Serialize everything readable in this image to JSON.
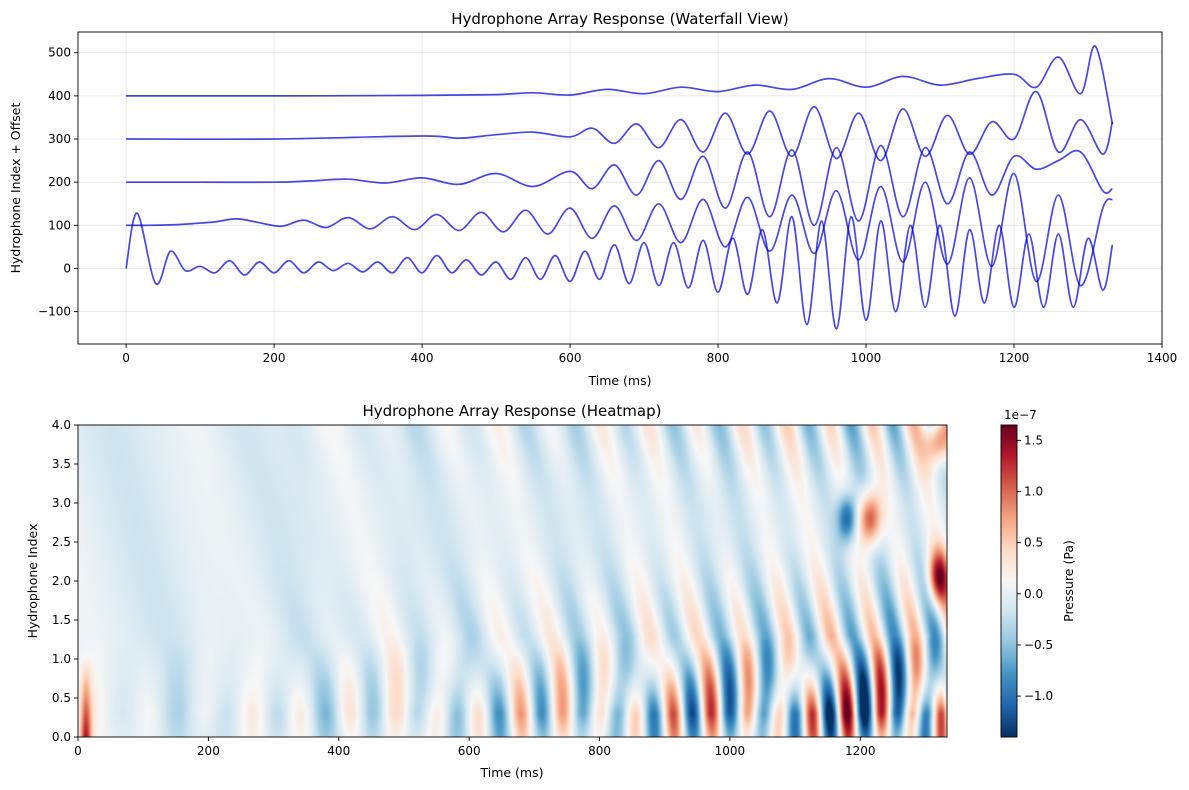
{
  "chart_data": [
    {
      "type": "line",
      "title": "Hydrophone Array Response (Waterfall View)",
      "xlabel": "Time (ms)",
      "ylabel": "Hydrophone Index + Offset",
      "xlim": [
        -65,
        1400
      ],
      "ylim": [
        -175,
        548
      ],
      "xticks": [
        0,
        200,
        400,
        600,
        800,
        1000,
        1200,
        1400
      ],
      "xtick_labels": [
        "0",
        "200",
        "400",
        "600",
        "800",
        "1000",
        "1200",
        "1400"
      ],
      "yticks": [
        -100,
        0,
        100,
        200,
        300,
        400,
        500
      ],
      "ytick_labels": [
        "−100",
        "0",
        "100",
        "200",
        "300",
        "400",
        "500"
      ],
      "grid": true,
      "line_color": "#0000dd",
      "series": [
        {
          "offset": 0,
          "x": [
            0,
            15,
            40,
            60,
            80,
            100,
            120,
            140,
            160,
            180,
            200,
            220,
            240,
            260,
            280,
            300,
            320,
            340,
            360,
            380,
            400,
            420,
            440,
            460,
            480,
            500,
            520,
            540,
            560,
            580,
            600,
            620,
            640,
            660,
            680,
            700,
            720,
            740,
            760,
            780,
            800,
            820,
            840,
            860,
            880,
            900,
            920,
            940,
            960,
            980,
            1000,
            1020,
            1040,
            1060,
            1080,
            1100,
            1120,
            1140,
            1160,
            1180,
            1200,
            1220,
            1240,
            1260,
            1280,
            1300,
            1320,
            1333
          ],
          "y": [
            0,
            128,
            -35,
            40,
            -5,
            5,
            -10,
            18,
            -15,
            15,
            -10,
            18,
            -10,
            15,
            -5,
            12,
            -8,
            15,
            -10,
            25,
            -10,
            30,
            -10,
            20,
            -15,
            15,
            -25,
            25,
            -25,
            30,
            -30,
            40,
            -25,
            55,
            -35,
            60,
            -40,
            60,
            -45,
            65,
            -55,
            70,
            -60,
            90,
            -80,
            120,
            -130,
            110,
            -140,
            120,
            -120,
            110,
            -100,
            100,
            -90,
            100,
            -110,
            90,
            -80,
            100,
            -90,
            80,
            -90,
            80,
            -90,
            70,
            -50,
            55
          ]
        },
        {
          "offset": 100,
          "x": [
            0,
            30,
            60,
            90,
            120,
            150,
            180,
            210,
            240,
            270,
            300,
            330,
            360,
            390,
            420,
            450,
            480,
            510,
            540,
            570,
            600,
            630,
            660,
            690,
            720,
            750,
            780,
            810,
            840,
            870,
            900,
            930,
            960,
            990,
            1020,
            1050,
            1080,
            1110,
            1140,
            1170,
            1200,
            1230,
            1260,
            1290,
            1320,
            1333
          ],
          "y": [
            100,
            100,
            101,
            104,
            108,
            115,
            106,
            98,
            112,
            95,
            118,
            92,
            120,
            90,
            125,
            88,
            130,
            85,
            135,
            80,
            140,
            70,
            145,
            65,
            150,
            60,
            160,
            50,
            165,
            40,
            170,
            35,
            180,
            20,
            190,
            15,
            200,
            10,
            210,
            5,
            220,
            -30,
            170,
            -40,
            140,
            160
          ]
        },
        {
          "offset": 200,
          "x": [
            0,
            100,
            200,
            250,
            300,
            350,
            400,
            450,
            500,
            550,
            600,
            630,
            660,
            690,
            720,
            750,
            780,
            810,
            840,
            870,
            900,
            930,
            960,
            990,
            1020,
            1050,
            1080,
            1110,
            1140,
            1170,
            1200,
            1230,
            1260,
            1290,
            1320,
            1333
          ],
          "y": [
            200,
            200,
            200,
            203,
            207,
            198,
            210,
            195,
            220,
            190,
            225,
            185,
            240,
            170,
            250,
            160,
            260,
            140,
            270,
            120,
            275,
            100,
            280,
            110,
            285,
            120,
            280,
            150,
            270,
            170,
            260,
            230,
            250,
            270,
            180,
            185
          ]
        },
        {
          "offset": 300,
          "x": [
            0,
            200,
            400,
            450,
            500,
            550,
            600,
            630,
            660,
            690,
            720,
            750,
            780,
            810,
            840,
            870,
            900,
            930,
            960,
            990,
            1020,
            1050,
            1080,
            1110,
            1140,
            1170,
            1200,
            1230,
            1260,
            1290,
            1320,
            1333
          ],
          "y": [
            300,
            300,
            307,
            302,
            310,
            316,
            305,
            325,
            290,
            335,
            280,
            345,
            270,
            360,
            265,
            365,
            260,
            375,
            255,
            360,
            250,
            370,
            260,
            355,
            265,
            340,
            300,
            410,
            270,
            345,
            265,
            340
          ]
        },
        {
          "offset": 400,
          "x": [
            0,
            200,
            400,
            500,
            550,
            600,
            650,
            700,
            750,
            800,
            850,
            900,
            950,
            1000,
            1050,
            1100,
            1150,
            1200,
            1230,
            1260,
            1290,
            1310,
            1333
          ],
          "y": [
            400,
            400,
            401,
            403,
            407,
            402,
            415,
            405,
            420,
            410,
            425,
            415,
            440,
            420,
            445,
            425,
            440,
            450,
            420,
            490,
            405,
            515,
            335
          ]
        }
      ]
    },
    {
      "type": "heatmap",
      "title": "Hydrophone Array Response (Heatmap)",
      "xlabel": "Time (ms)",
      "ylabel": "Hydrophone Index",
      "xlim": [
        0,
        1333
      ],
      "ylim": [
        0.0,
        4.0
      ],
      "xticks": [
        0,
        200,
        400,
        600,
        800,
        1000,
        1200
      ],
      "xtick_labels": [
        "0",
        "200",
        "400",
        "600",
        "800",
        "1000",
        "1200"
      ],
      "yticks": [
        0.0,
        0.5,
        1.0,
        1.5,
        2.0,
        2.5,
        3.0,
        3.5,
        4.0
      ],
      "ytick_labels": [
        "0.0",
        "0.5",
        "1.0",
        "1.5",
        "2.0",
        "2.5",
        "3.0",
        "3.5",
        "4.0"
      ],
      "colormap": "RdBu_r",
      "colorbar": {
        "label": "Pressure (Pa)",
        "offset_text": "1e−7",
        "ticks": [
          -1.0,
          -0.5,
          0.0,
          0.5,
          1.0,
          1.5
        ],
        "tick_labels": [
          "−1.0",
          "−0.5",
          "0.0",
          "0.5",
          "1.0",
          "1.5"
        ],
        "range": [
          -1.4,
          1.65
        ]
      }
    }
  ]
}
